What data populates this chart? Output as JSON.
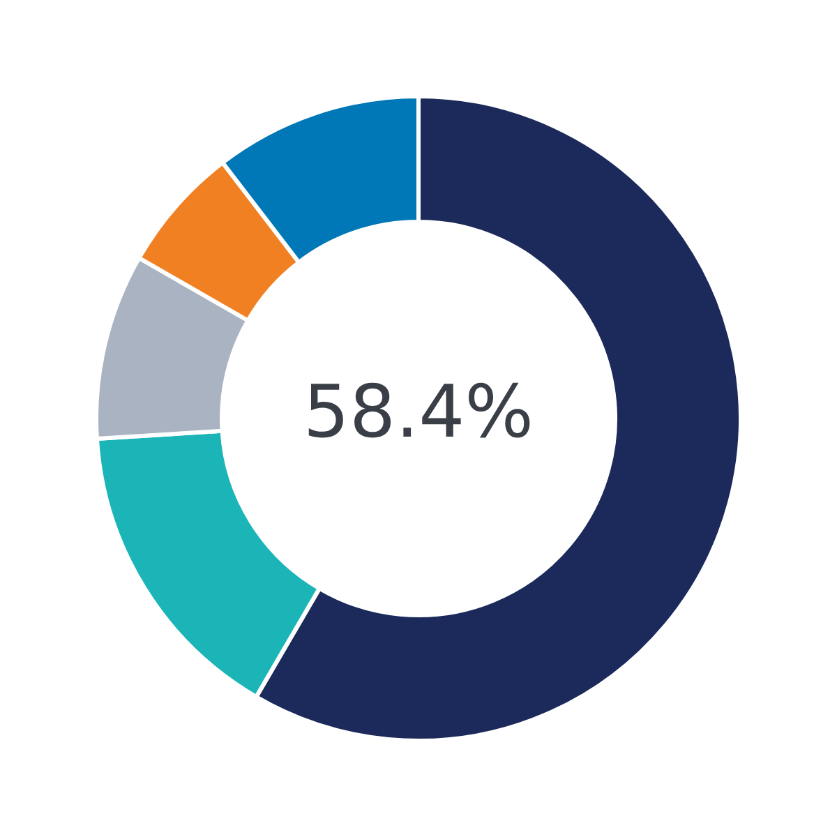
{
  "chart_data": {
    "type": "donut",
    "categories": [
      null,
      null,
      null,
      null,
      null
    ],
    "values": [
      58.4,
      15.6,
      9.3,
      6.3,
      10.4
    ],
    "colors": [
      "#1b2a5a",
      "#1bb5b8",
      "#a9b3c1",
      "#f08022",
      "#0077b6"
    ],
    "annotations": [
      "58.4%"
    ]
  }
}
